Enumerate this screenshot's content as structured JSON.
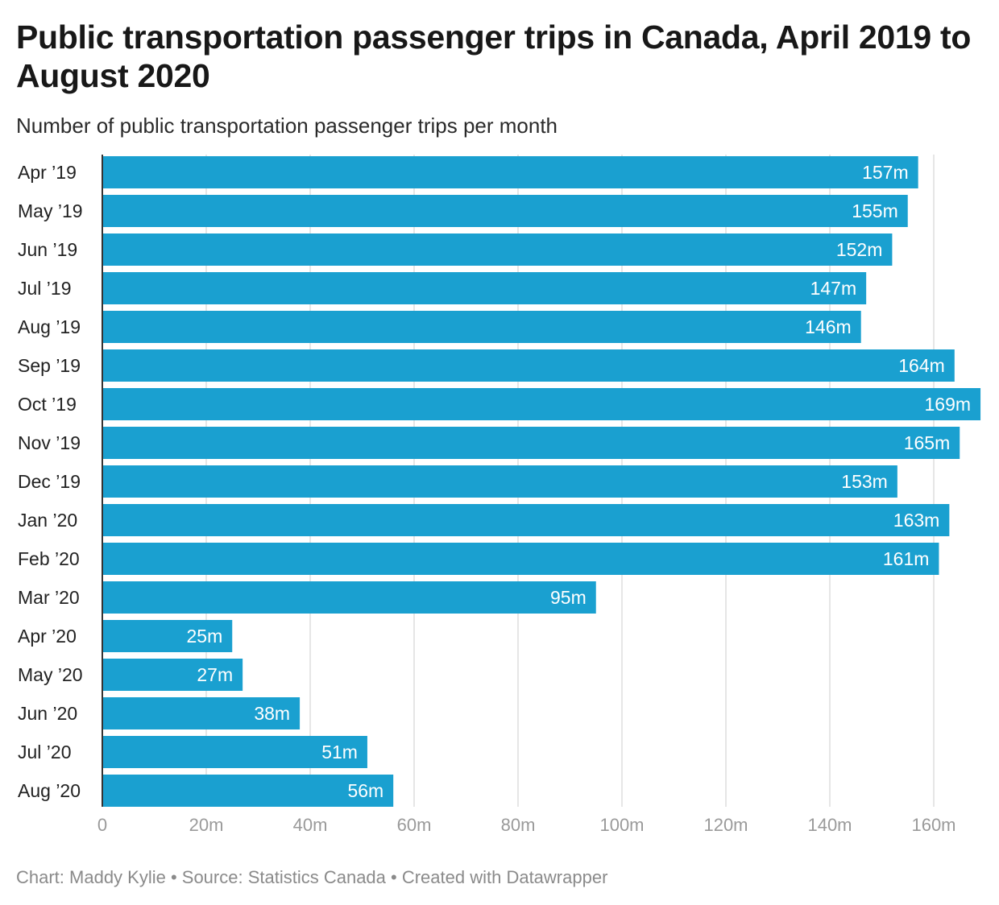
{
  "title": "Public transportation passenger trips in Canada, April 2019 to August 2020",
  "subtitle": "Number of public transportation passenger trips per month",
  "footer": {
    "text": "Chart: Maddy Kylie • Source: Statistics Canada • Created with Datawrapper"
  },
  "colors": {
    "bar": "#1aa0d0",
    "bar_label": "#ffffff",
    "grid": "#dedede",
    "axis": "#333333",
    "tick_label": "#9a9a9a",
    "category_label": "#222222"
  },
  "chart_data": {
    "type": "bar",
    "orientation": "horizontal",
    "categories": [
      "Apr ’19",
      "May ’19",
      "Jun ’19",
      "Jul ’19",
      "Aug ’19",
      "Sep ’19",
      "Oct ’19",
      "Nov ’19",
      "Dec ’19",
      "Jan ’20",
      "Feb ’20",
      "Mar ’20",
      "Apr ’20",
      "May ’20",
      "Jun ’20",
      "Jul ’20",
      "Aug ’20"
    ],
    "values": [
      157,
      155,
      152,
      147,
      146,
      164,
      169,
      165,
      153,
      163,
      161,
      95,
      25,
      27,
      38,
      51,
      56
    ],
    "value_labels": [
      "157m",
      "155m",
      "152m",
      "147m",
      "146m",
      "164m",
      "169m",
      "165m",
      "153m",
      "163m",
      "161m",
      "95m",
      "25m",
      "27m",
      "38m",
      "51m",
      "56m"
    ],
    "x_ticks": [
      0,
      20,
      40,
      60,
      80,
      100,
      120,
      140,
      160
    ],
    "x_tick_labels": [
      "0",
      "20m",
      "40m",
      "60m",
      "80m",
      "100m",
      "120m",
      "140m",
      "160m"
    ],
    "xlim": [
      0,
      169
    ],
    "unit": "million trips",
    "grid": true,
    "legend": "none"
  }
}
